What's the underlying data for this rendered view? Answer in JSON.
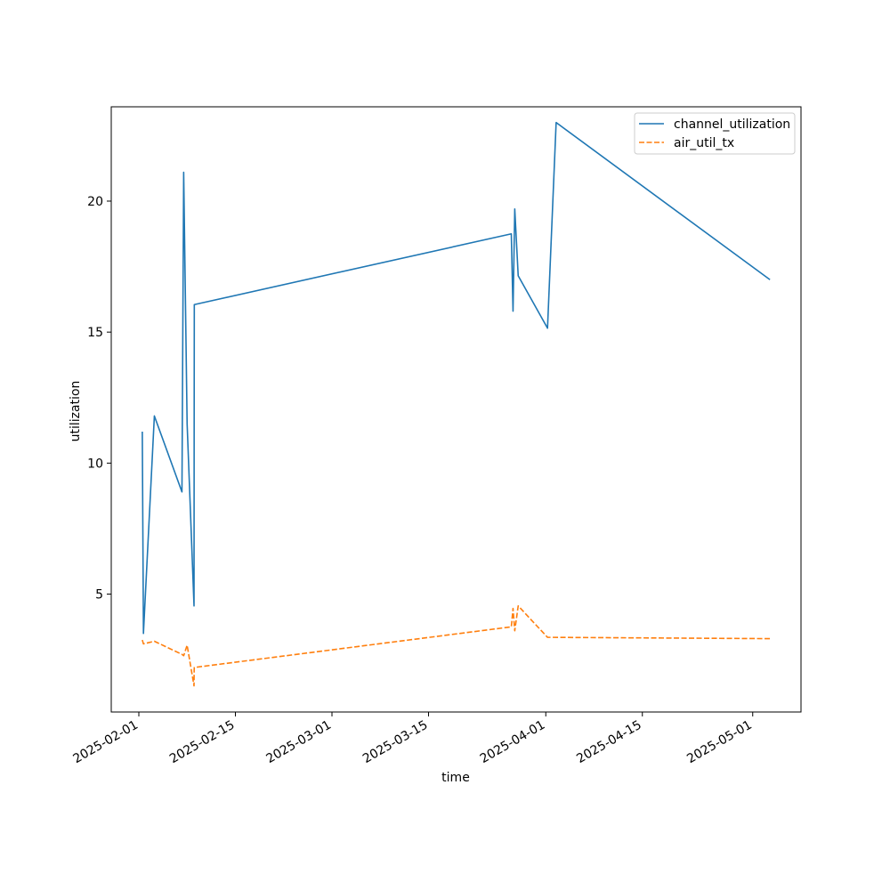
{
  "chart_data": {
    "type": "line",
    "title": "",
    "xlabel": "time",
    "ylabel": "utilization",
    "grid": false,
    "legend_position": "top-right",
    "x_ticks": [
      "2025-02-01",
      "2025-02-15",
      "2025-03-01",
      "2025-03-15",
      "2025-04-01",
      "2025-04-15",
      "2025-05-01"
    ],
    "y_ticks": [
      "5",
      "10",
      "15",
      "20"
    ],
    "xlim": [
      "2025-01-28",
      "2025-05-08"
    ],
    "ylim": [
      0.5,
      23.6
    ],
    "series": [
      {
        "name": "channel_utilization",
        "color": "#1f77b4",
        "style": "solid",
        "points": [
          [
            "2025-02-01T12:00",
            11.2
          ],
          [
            "2025-02-01T16:00",
            3.5
          ],
          [
            "2025-02-03T06:00",
            11.8
          ],
          [
            "2025-02-07T06:00",
            8.9
          ],
          [
            "2025-02-07T12:00",
            21.1
          ],
          [
            "2025-02-08T00:00",
            11.5
          ],
          [
            "2025-02-09T00:00",
            4.55
          ],
          [
            "2025-02-09T00:30",
            11.4
          ],
          [
            "2025-02-09T01:00",
            16.05
          ],
          [
            "2025-03-27T00:00",
            18.75
          ],
          [
            "2025-03-27T06:00",
            15.8
          ],
          [
            "2025-03-27T12:00",
            19.7
          ],
          [
            "2025-03-28T00:00",
            17.15
          ],
          [
            "2025-04-01T06:00",
            15.15
          ],
          [
            "2025-04-02T12:00",
            23.0
          ],
          [
            "2025-05-03T12:00",
            17.0
          ]
        ]
      },
      {
        "name": "air_util_tx",
        "color": "#ff7f0e",
        "style": "dashed",
        "points": [
          [
            "2025-02-01T12:00",
            3.25
          ],
          [
            "2025-02-01T16:00",
            3.1
          ],
          [
            "2025-02-03T06:00",
            3.2
          ],
          [
            "2025-02-07T06:00",
            2.7
          ],
          [
            "2025-02-07T12:00",
            2.65
          ],
          [
            "2025-02-08T00:00",
            3.05
          ],
          [
            "2025-02-09T00:00",
            1.5
          ],
          [
            "2025-02-09T00:30",
            2.1
          ],
          [
            "2025-02-09T01:00",
            2.2
          ],
          [
            "2025-03-27T00:00",
            3.75
          ],
          [
            "2025-03-27T06:00",
            4.45
          ],
          [
            "2025-03-27T12:00",
            3.6
          ],
          [
            "2025-03-28T00:00",
            4.55
          ],
          [
            "2025-04-01T06:00",
            3.35
          ],
          [
            "2025-05-03T12:00",
            3.3
          ]
        ]
      }
    ]
  }
}
